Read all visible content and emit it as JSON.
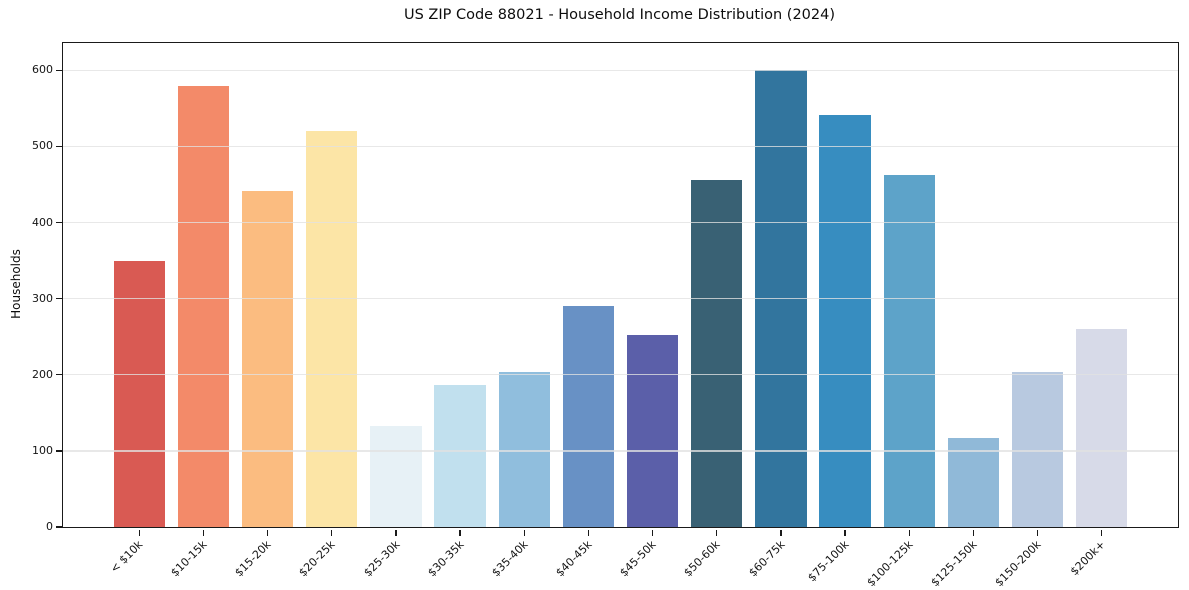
{
  "chart_data": {
    "type": "bar",
    "title": "US ZIP Code 88021 - Household Income Distribution (2024)",
    "xlabel": "",
    "ylabel": "Households",
    "categories": [
      "< $10k",
      "$10-15k",
      "$15-20k",
      "$20-25k",
      "$25-30k",
      "$30-35k",
      "$35-40k",
      "$40-45k",
      "$45-50k",
      "$50-60k",
      "$60-75k",
      "$75-100k",
      "$100-125k",
      "$125-150k",
      "$150-200k",
      "$200k+"
    ],
    "values": [
      350,
      580,
      441,
      520,
      133,
      187,
      204,
      291,
      252,
      456,
      601,
      541,
      463,
      117,
      204,
      260
    ],
    "bar_colors": [
      "#d95a53",
      "#f38a69",
      "#fbbc80",
      "#fce5a6",
      "#e7f1f6",
      "#c1e0ee",
      "#90bedd",
      "#6891c5",
      "#5b5fa9",
      "#396174",
      "#32759e",
      "#378dc0",
      "#5da3c9",
      "#90b9d8",
      "#b8c9e0",
      "#d7dae8"
    ],
    "yticks": [
      0,
      100,
      200,
      300,
      400,
      500,
      600
    ],
    "ylim": [
      0,
      636
    ],
    "grid": "horizontal",
    "grid_color": "#e8e8e8",
    "legend": "none",
    "xtick_rotation_deg": 45,
    "background_color": "#ffffff",
    "spine_color": "#1a1a1a"
  }
}
